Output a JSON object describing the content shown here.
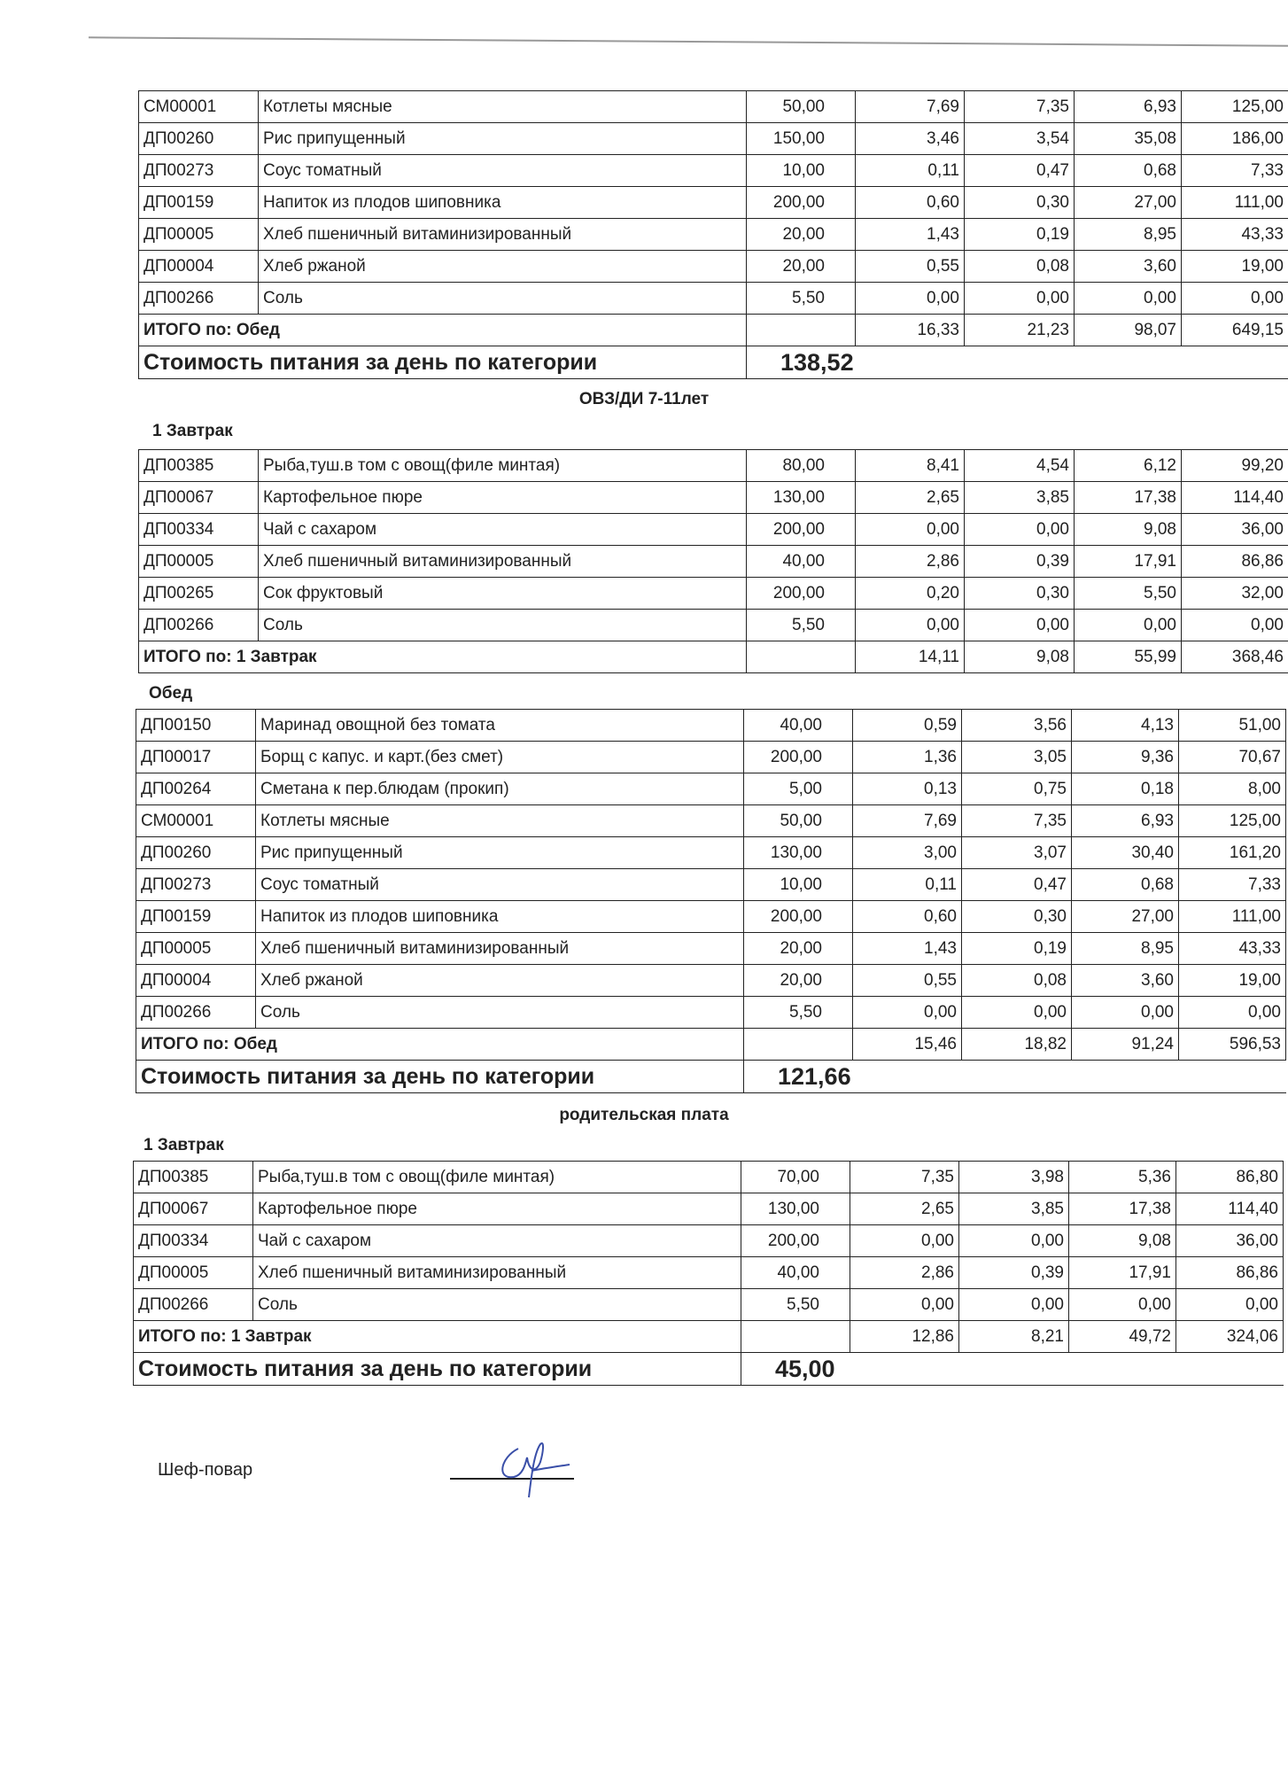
{
  "columns_hint": null,
  "block1": {
    "rows": [
      [
        "СМ00001",
        "Котлеты мясные",
        "50,00",
        "7,69",
        "7,35",
        "6,93",
        "125,00"
      ],
      [
        "ДП00260",
        "Рис припущенный",
        "150,00",
        "3,46",
        "3,54",
        "35,08",
        "186,00"
      ],
      [
        "ДП00273",
        "Соус томатный",
        "10,00",
        "0,11",
        "0,47",
        "0,68",
        "7,33"
      ],
      [
        "ДП00159",
        "Напиток из плодов шиповника",
        "200,00",
        "0,60",
        "0,30",
        "27,00",
        "111,00"
      ],
      [
        "ДП00005",
        "Хлеб пшеничный витаминизированный",
        "20,00",
        "1,43",
        "0,19",
        "8,95",
        "43,33"
      ],
      [
        "ДП00004",
        "Хлеб ржаной",
        "20,00",
        "0,55",
        "0,08",
        "3,60",
        "19,00"
      ],
      [
        "ДП00266",
        "Соль",
        "5,50",
        "0,00",
        "0,00",
        "0,00",
        "0,00"
      ]
    ],
    "total": {
      "label": "ИТОГО по: Обед",
      "values": [
        "16,33",
        "21,23",
        "98,07",
        "649,15"
      ]
    },
    "cost": {
      "label": "Стоимость питания за день по категории",
      "value": "138,52"
    }
  },
  "category2": {
    "title": "ОВЗ/ДИ 7-11лет",
    "breakfast": {
      "label": "1 Завтрак",
      "rows": [
        [
          "ДП00385",
          "Рыба,туш.в том с овощ(филе минтая)",
          "80,00",
          "8,41",
          "4,54",
          "6,12",
          "99,20"
        ],
        [
          "ДП00067",
          "Картофельное пюре",
          "130,00",
          "2,65",
          "3,85",
          "17,38",
          "114,40"
        ],
        [
          "ДП00334",
          "Чай с сахаром",
          "200,00",
          "0,00",
          "0,00",
          "9,08",
          "36,00"
        ],
        [
          "ДП00005",
          "Хлеб пшеничный витаминизированный",
          "40,00",
          "2,86",
          "0,39",
          "17,91",
          "86,86"
        ],
        [
          "ДП00265",
          "Сок фруктовый",
          "200,00",
          "0,20",
          "0,30",
          "5,50",
          "32,00"
        ],
        [
          "ДП00266",
          "Соль",
          "5,50",
          "0,00",
          "0,00",
          "0,00",
          "0,00"
        ]
      ],
      "total": {
        "label": "ИТОГО по: 1 Завтрак",
        "values": [
          "14,11",
          "9,08",
          "55,99",
          "368,46"
        ]
      }
    },
    "lunch": {
      "label": "Обед",
      "rows": [
        [
          "ДП00150",
          "Маринад овощной без томата",
          "40,00",
          "0,59",
          "3,56",
          "4,13",
          "51,00"
        ],
        [
          "ДП00017",
          "Борщ с капус. и карт.(без смет)",
          "200,00",
          "1,36",
          "3,05",
          "9,36",
          "70,67"
        ],
        [
          "ДП00264",
          "Сметана к пер.блюдам (прокип)",
          "5,00",
          "0,13",
          "0,75",
          "0,18",
          "8,00"
        ],
        [
          "СМ00001",
          "Котлеты мясные",
          "50,00",
          "7,69",
          "7,35",
          "6,93",
          "125,00"
        ],
        [
          "ДП00260",
          "Рис припущенный",
          "130,00",
          "3,00",
          "3,07",
          "30,40",
          "161,20"
        ],
        [
          "ДП00273",
          "Соус томатный",
          "10,00",
          "0,11",
          "0,47",
          "0,68",
          "7,33"
        ],
        [
          "ДП00159",
          "Напиток из плодов шиповника",
          "200,00",
          "0,60",
          "0,30",
          "27,00",
          "111,00"
        ],
        [
          "ДП00005",
          "Хлеб пшеничный витаминизированный",
          "20,00",
          "1,43",
          "0,19",
          "8,95",
          "43,33"
        ],
        [
          "ДП00004",
          "Хлеб ржаной",
          "20,00",
          "0,55",
          "0,08",
          "3,60",
          "19,00"
        ],
        [
          "ДП00266",
          "Соль",
          "5,50",
          "0,00",
          "0,00",
          "0,00",
          "0,00"
        ]
      ],
      "total": {
        "label": "ИТОГО по: Обед",
        "values": [
          "15,46",
          "18,82",
          "91,24",
          "596,53"
        ]
      }
    },
    "cost": {
      "label": "Стоимость питания за день по категории",
      "value": "121,66"
    }
  },
  "category3": {
    "title": "родительская плата",
    "breakfast": {
      "label": "1 Завтрак",
      "rows": [
        [
          "ДП00385",
          "Рыба,туш.в том с овощ(филе минтая)",
          "70,00",
          "7,35",
          "3,98",
          "5,36",
          "86,80"
        ],
        [
          "ДП00067",
          "Картофельное пюре",
          "130,00",
          "2,65",
          "3,85",
          "17,38",
          "114,40"
        ],
        [
          "ДП00334",
          "Чай с сахаром",
          "200,00",
          "0,00",
          "0,00",
          "9,08",
          "36,00"
        ],
        [
          "ДП00005",
          "Хлеб пшеничный витаминизированный",
          "40,00",
          "2,86",
          "0,39",
          "17,91",
          "86,86"
        ],
        [
          "ДП00266",
          "Соль",
          "5,50",
          "0,00",
          "0,00",
          "0,00",
          "0,00"
        ]
      ],
      "total": {
        "label": "ИТОГО по: 1 Завтрак",
        "values": [
          "12,86",
          "8,21",
          "49,72",
          "324,06"
        ]
      }
    },
    "cost": {
      "label": "Стоимость питания за день по категории",
      "value": "45,00"
    }
  },
  "footer": {
    "chef_label": "Шеф-повар",
    "signature_color": "#3a4fa8"
  }
}
